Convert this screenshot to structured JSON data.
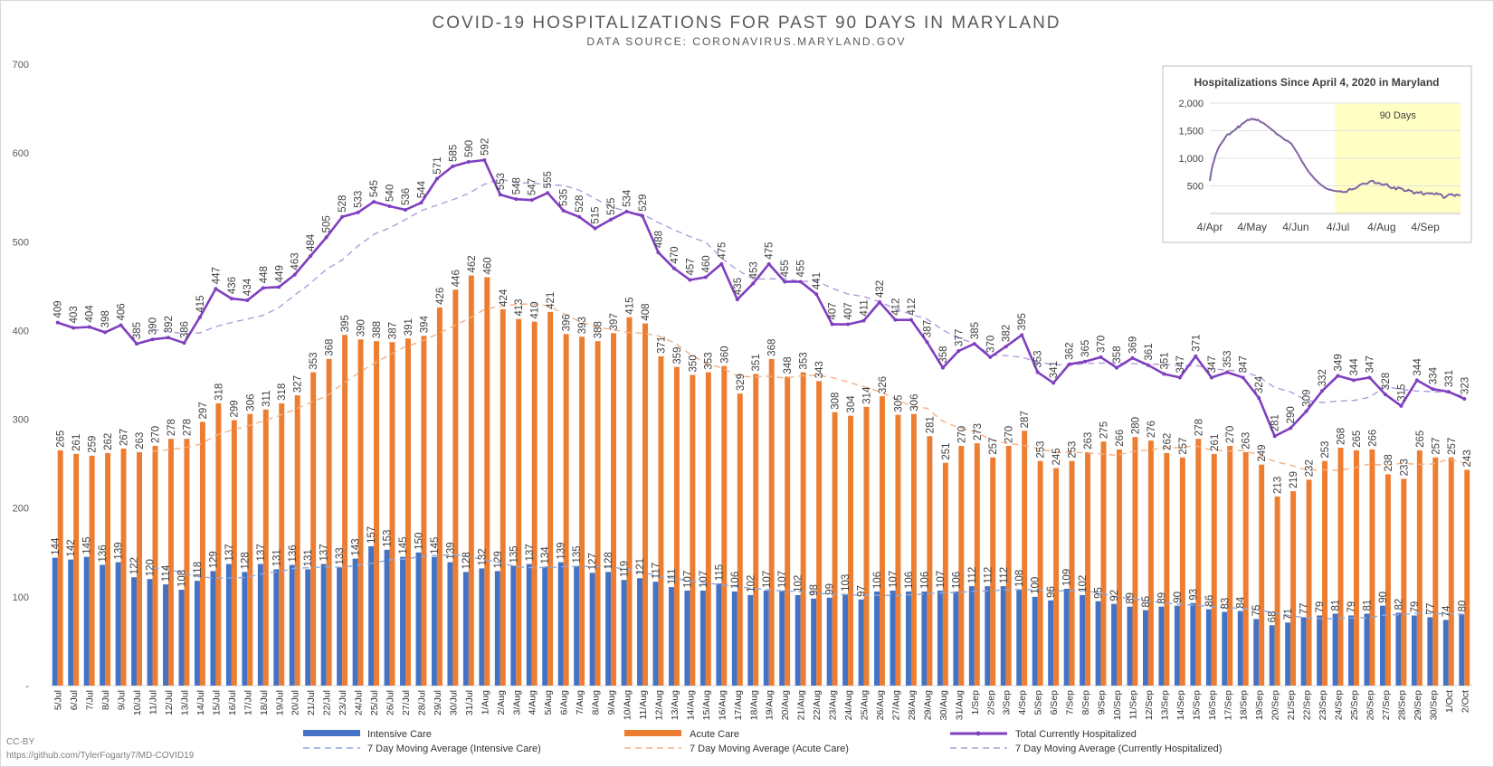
{
  "chart_data": [
    {
      "type": "bar",
      "title": "COVID-19 HOSPITALIZATIONS FOR PAST 90 DAYS IN MARYLAND",
      "subtitle": "DATA SOURCE: CORONAVIRUS.MARYLAND.GOV",
      "ylim": [
        0,
        700
      ],
      "y_ticks": [
        "-",
        "100",
        "200",
        "300",
        "400",
        "500",
        "600",
        "700"
      ],
      "grid": false,
      "legend_position": "bottom",
      "categories": [
        "5/Jul",
        "6/Jul",
        "7/Jul",
        "8/Jul",
        "9/Jul",
        "10/Jul",
        "11/Jul",
        "12/Jul",
        "13/Jul",
        "14/Jul",
        "15/Jul",
        "16/Jul",
        "17/Jul",
        "18/Jul",
        "19/Jul",
        "20/Jul",
        "21/Jul",
        "22/Jul",
        "23/Jul",
        "24/Jul",
        "25/Jul",
        "26/Jul",
        "27/Jul",
        "28/Jul",
        "29/Jul",
        "30/Jul",
        "31/Jul",
        "1/Aug",
        "2/Aug",
        "3/Aug",
        "4/Aug",
        "5/Aug",
        "6/Aug",
        "7/Aug",
        "8/Aug",
        "9/Aug",
        "10/Aug",
        "11/Aug",
        "12/Aug",
        "13/Aug",
        "14/Aug",
        "15/Aug",
        "16/Aug",
        "17/Aug",
        "18/Aug",
        "19/Aug",
        "20/Aug",
        "21/Aug",
        "22/Aug",
        "23/Aug",
        "24/Aug",
        "25/Aug",
        "26/Aug",
        "27/Aug",
        "28/Aug",
        "29/Aug",
        "30/Aug",
        "31/Aug",
        "1/Sep",
        "2/Sep",
        "3/Sep",
        "4/Sep",
        "5/Sep",
        "6/Sep",
        "7/Sep",
        "8/Sep",
        "9/Sep",
        "10/Sep",
        "11/Sep",
        "12/Sep",
        "13/Sep",
        "14/Sep",
        "15/Sep",
        "16/Sep",
        "17/Sep",
        "18/Sep",
        "19/Sep",
        "20/Sep",
        "21/Sep",
        "22/Sep",
        "23/Sep",
        "24/Sep",
        "25/Sep",
        "26/Sep",
        "27/Sep",
        "28/Sep",
        "29/Sep",
        "30/Sep",
        "1/Oct",
        "2/Oct"
      ],
      "series": [
        {
          "name": "Intensive Care",
          "kind": "bar",
          "color": "#4472c4",
          "values": [
            144,
            142,
            145,
            136,
            139,
            122,
            120,
            114,
            108,
            118,
            129,
            137,
            128,
            137,
            131,
            136,
            131,
            137,
            133,
            143,
            157,
            153,
            145,
            150,
            145,
            139,
            128,
            132,
            129,
            135,
            137,
            134,
            139,
            135,
            127,
            128,
            119,
            121,
            117,
            111,
            107,
            107,
            115,
            106,
            102,
            107,
            107,
            102,
            98,
            99,
            103,
            97,
            106,
            107,
            106,
            106,
            107,
            106,
            112,
            112,
            112,
            108,
            100,
            96,
            109,
            102,
            95,
            92,
            89,
            85,
            89,
            90,
            93,
            86,
            83,
            84,
            75,
            68,
            71,
            77,
            79,
            81,
            79,
            81,
            90,
            82,
            79,
            77,
            74,
            80
          ]
        },
        {
          "name": "Acute Care",
          "kind": "bar",
          "color": "#ed7d31",
          "values": [
            265,
            261,
            259,
            262,
            267,
            263,
            270,
            278,
            278,
            297,
            318,
            299,
            306,
            311,
            318,
            327,
            353,
            368,
            395,
            390,
            388,
            387,
            391,
            394,
            426,
            446,
            462,
            460,
            424,
            413,
            410,
            421,
            396,
            393,
            388,
            397,
            415,
            408,
            371,
            359,
            350,
            353,
            360,
            329,
            351,
            368,
            348,
            353,
            343,
            308,
            304,
            314,
            326,
            305,
            306,
            281,
            251,
            270,
            273,
            257,
            270,
            287,
            253,
            245,
            253,
            263,
            275,
            266,
            280,
            276,
            262,
            257,
            278,
            261,
            270,
            263,
            249,
            213,
            219,
            232,
            253,
            268,
            265,
            266,
            238,
            233,
            265,
            257,
            257,
            243
          ]
        },
        {
          "name": "Total Currently Hospitalized",
          "kind": "line",
          "color": "#7f3fbf",
          "values": [
            409,
            403,
            404,
            398,
            406,
            385,
            390,
            392,
            386,
            415,
            447,
            436,
            434,
            448,
            449,
            463,
            484,
            505,
            528,
            533,
            545,
            540,
            536,
            544,
            571,
            585,
            590,
            592,
            553,
            548,
            547,
            555,
            535,
            528,
            515,
            525,
            534,
            529,
            488,
            470,
            457,
            460,
            475,
            435,
            453,
            475,
            455,
            455,
            441,
            407,
            407,
            411,
            432,
            412,
            412,
            387,
            358,
            377,
            385,
            370,
            382,
            395,
            353,
            341,
            362,
            365,
            370,
            358,
            369,
            361,
            351,
            347,
            371,
            347,
            353,
            347,
            324,
            281,
            290,
            309,
            332,
            349,
            344,
            347,
            328,
            315,
            344,
            334,
            331,
            323
          ]
        },
        {
          "name": "7 Day Moving Average (Intensive Care)",
          "kind": "dashed",
          "color": "#8fa9d9",
          "values": [
            null,
            null,
            null,
            null,
            null,
            null,
            132.6,
            131.1,
            126.3,
            122.4,
            121.4,
            121.1,
            122.0,
            126.1,
            128.3,
            132.3,
            132.9,
            133.9,
            133.3,
            135.4,
            138.3,
            141.4,
            142.7,
            145.4,
            146.6,
            147.4,
            145.3,
            141.9,
            138.3,
            134.0,
            132.9,
            132.9,
            133.9,
            134.4,
            133.9,
            133.6,
            131.3,
            127.6,
            123.4,
            120.9,
            117.8,
            115.4,
            113.8,
            111.6,
            109.4,
            107.9,
            106.4,
            105.9,
            104.0,
            103.0,
            102.6,
            101.7,
            101.7,
            101.3,
            102.4,
            103.3,
            104.6,
            105.0,
            106.3,
            106.9,
            107.9,
            108.1,
            108.1,
            106.6,
            107.0,
            106.9,
            103.9,
            99.7,
            97.9,
            95.4,
            93.1,
            91.7,
            90.4,
            89.1,
            87.6,
            87.1,
            85.0,
            81.9,
            78.6,
            76.3,
            75.3,
            75.6,
            76.3,
            76.6,
            79.7,
            79.9,
            81.6,
            81.1,
            80.9,
            80.4
          ]
        },
        {
          "name": "7 Day Moving Average (Acute Care)",
          "kind": "dashed",
          "color": "#f4b183",
          "values": [
            null,
            null,
            null,
            null,
            null,
            null,
            263.9,
            265.7,
            267.9,
            271.7,
            281.6,
            288.1,
            292.3,
            298.1,
            303.9,
            311.0,
            318.9,
            326.0,
            339.7,
            351.7,
            362.7,
            372.6,
            381.7,
            387.6,
            395.9,
            404.6,
            413.4,
            423.7,
            427.4,
            429.3,
            430.1,
            428.0,
            419.3,
            410.3,
            404.4,
            401.1,
            398.0,
            397.0,
            394.0,
            386.4,
            373.6,
            362.8,
            358.0,
            349.0,
            347.6,
            348.6,
            346.3,
            348.9,
            349.6,
            347.0,
            342.0,
            336.9,
            331.3,
            323.1,
            315.1,
            312.4,
            297.8,
            290.6,
            286.3,
            277.6,
            273.0,
            270.9,
            267.3,
            263.3,
            262.6,
            262.6,
            261.0,
            259.3,
            263.7,
            265.3,
            267.7,
            268.1,
            270.3,
            265.3,
            264.4,
            264.7,
            260.0,
            252.4,
            248.4,
            242.9,
            242.9,
            242.6,
            244.9,
            249.7,
            248.0,
            250.4,
            249.3,
            249.6,
            255.0,
            250.9
          ]
        },
        {
          "name": "7 Day Moving Average (Currently Hospitalized)",
          "kind": "dashed",
          "color": "#b19cd9",
          "values": [
            null,
            null,
            null,
            null,
            null,
            null,
            401.0,
            398.9,
            396.4,
            397.4,
            404.4,
            409.0,
            412.9,
            417.0,
            425.9,
            440.0,
            453.3,
            469.0,
            479.4,
            495.3,
            508.3,
            515.6,
            525.0,
            535.0,
            541.3,
            547.3,
            554.4,
            564.7,
            570.6,
            566.6,
            566.1,
            564.3,
            563.4,
            558.3,
            548.6,
            539.5,
            534.1,
            531.1,
            521.7,
            513.4,
            505.9,
            499.4,
            482.0,
            468.3,
            458.1,
            458.1,
            458.4,
            455.4,
            455.6,
            447.7,
            441.1,
            438.3,
            432.4,
            424.4,
            418.3,
            412.9,
            400.6,
            391.1,
            385.9,
            372.3,
            371.7,
            370.1,
            364.3,
            361.7,
            360.8,
            362.8,
            363.3,
            363.1,
            362.6,
            362.0,
            362.1,
            360.3,
            360.9,
            356.8,
            355.4,
            353.8,
            347.9,
            335.7,
            330.9,
            321.4,
            318.9,
            320.6,
            321.3,
            324.7,
            336.9,
            333.7,
            331.9,
            331.1,
            329.9,
            326.0
          ]
        }
      ],
      "footer_license": "CC-BY",
      "footer_url": "https://github.com/TylerFogarty7/MD-COVID19"
    },
    {
      "type": "line",
      "title": "Hospitalizations Since April 4, 2020 in Maryland",
      "ylim": [
        0,
        2000
      ],
      "y_ticks": [
        "500",
        "1,000",
        "1,500",
        "2,000"
      ],
      "x_ticks": [
        "4/Apr",
        "4/May",
        "4/Jun",
        "4/Jul",
        "4/Aug",
        "4/Sep"
      ],
      "highlight_label": "90 Days",
      "highlight_color": "#ffffc4",
      "line_color": "#8064a2",
      "values": [
        590,
        760,
        880,
        960,
        1050,
        1120,
        1180,
        1230,
        1260,
        1300,
        1340,
        1380,
        1420,
        1440,
        1430,
        1460,
        1480,
        1500,
        1520,
        1540,
        1580,
        1560,
        1600,
        1630,
        1640,
        1660,
        1680,
        1700,
        1690,
        1710,
        1720,
        1700,
        1710,
        1690,
        1700,
        1680,
        1660,
        1650,
        1640,
        1620,
        1600,
        1580,
        1560,
        1540,
        1520,
        1500,
        1480,
        1450,
        1430,
        1420,
        1400,
        1380,
        1360,
        1340,
        1320,
        1320,
        1300,
        1280,
        1260,
        1220,
        1180,
        1140,
        1100,
        1060,
        1010,
        960,
        920,
        880,
        840,
        800,
        760,
        730,
        700,
        670,
        640,
        610,
        590,
        560,
        540,
        520,
        500,
        480,
        460,
        450,
        440,
        430,
        430,
        420,
        410,
        409,
        403,
        404,
        398,
        406,
        385,
        390,
        392,
        386,
        415,
        447,
        436,
        434,
        448,
        449,
        463,
        484,
        505,
        528,
        533,
        545,
        540,
        536,
        544,
        571,
        585,
        590,
        592,
        553,
        548,
        547,
        555,
        535,
        528,
        515,
        525,
        534,
        529,
        488,
        470,
        457,
        460,
        475,
        435,
        453,
        475,
        455,
        455,
        441,
        407,
        407,
        411,
        432,
        412,
        412,
        387,
        358,
        377,
        385,
        370,
        382,
        395,
        353,
        341,
        362,
        365,
        370,
        358,
        369,
        361,
        351,
        347,
        371,
        347,
        353,
        347,
        324,
        281,
        290,
        309,
        332,
        349,
        344,
        347,
        328,
        315,
        344,
        334,
        331,
        323
      ]
    }
  ]
}
